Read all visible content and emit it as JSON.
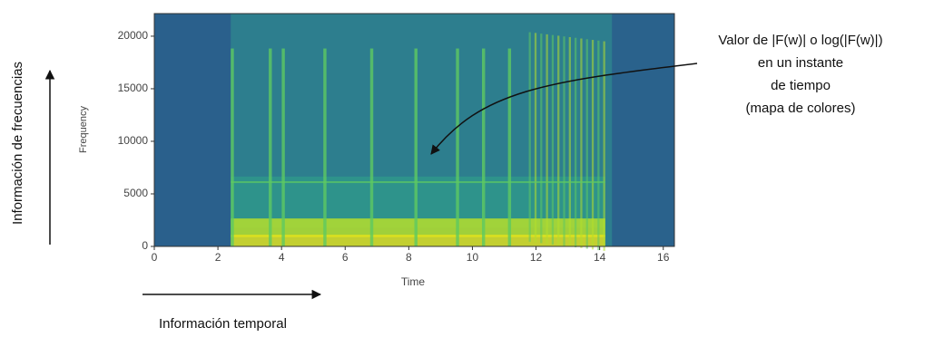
{
  "chart_data": {
    "type": "spectrogram",
    "colormap": "viridis",
    "xlabel": "Time",
    "ylabel": "Frequency",
    "xlim": [
      0,
      16.35
    ],
    "xticks": [
      0,
      2,
      4,
      6,
      8,
      10,
      12,
      14,
      16
    ],
    "ylim": [
      0,
      22150
    ],
    "yticks": [
      0,
      5000,
      10000,
      15000,
      20000
    ],
    "annotation": [
      "Valor de |F(w)| o log(|F(w)|)",
      "en un instante",
      "de tiempo",
      "(mapa de colores)"
    ],
    "y_side_label": "Información de frecuencias",
    "x_side_label": "Información temporal"
  }
}
